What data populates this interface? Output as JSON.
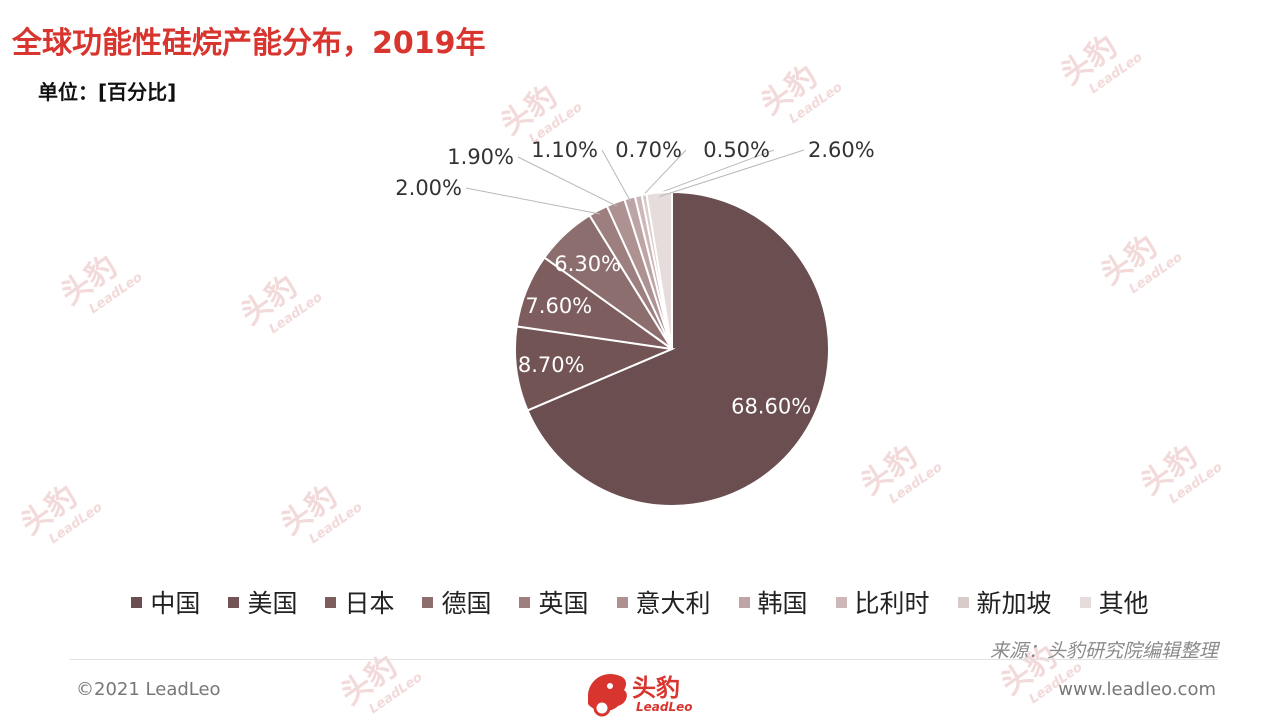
{
  "header": {
    "title": "全球功能性硅烷产能分布，2019年",
    "unit": "单位：[百分比]"
  },
  "chart_data": {
    "type": "pie",
    "categories": [
      "中国",
      "美国",
      "日本",
      "德国",
      "英国",
      "意大利",
      "韩国",
      "比利时",
      "新加坡",
      "其他"
    ],
    "values": [
      68.6,
      8.7,
      7.6,
      6.3,
      2.0,
      1.9,
      1.1,
      0.7,
      0.5,
      2.6
    ],
    "labels": [
      "68.60%",
      "8.70%",
      "7.60%",
      "6.30%",
      "2.00%",
      "1.90%",
      "1.10%",
      "0.70%",
      "0.50%",
      "2.60%"
    ],
    "colors": [
      "#6b4e4f",
      "#735455",
      "#7d5d5e",
      "#8c6e6e",
      "#9d7f7f",
      "#ae9292",
      "#bda5a6",
      "#cdb8b9",
      "#dacbcb",
      "#e7dcdc"
    ],
    "legend_position": "bottom"
  },
  "footer": {
    "source": "来源：头豹研究院编辑整理",
    "copyright": "©2021 LeadLeo",
    "website": "www.leadleo.com",
    "logo_text": "头豹",
    "logo_sub": "LeadLeo"
  },
  "watermark": {
    "text": "头豹",
    "sub": "LeadLeo"
  }
}
